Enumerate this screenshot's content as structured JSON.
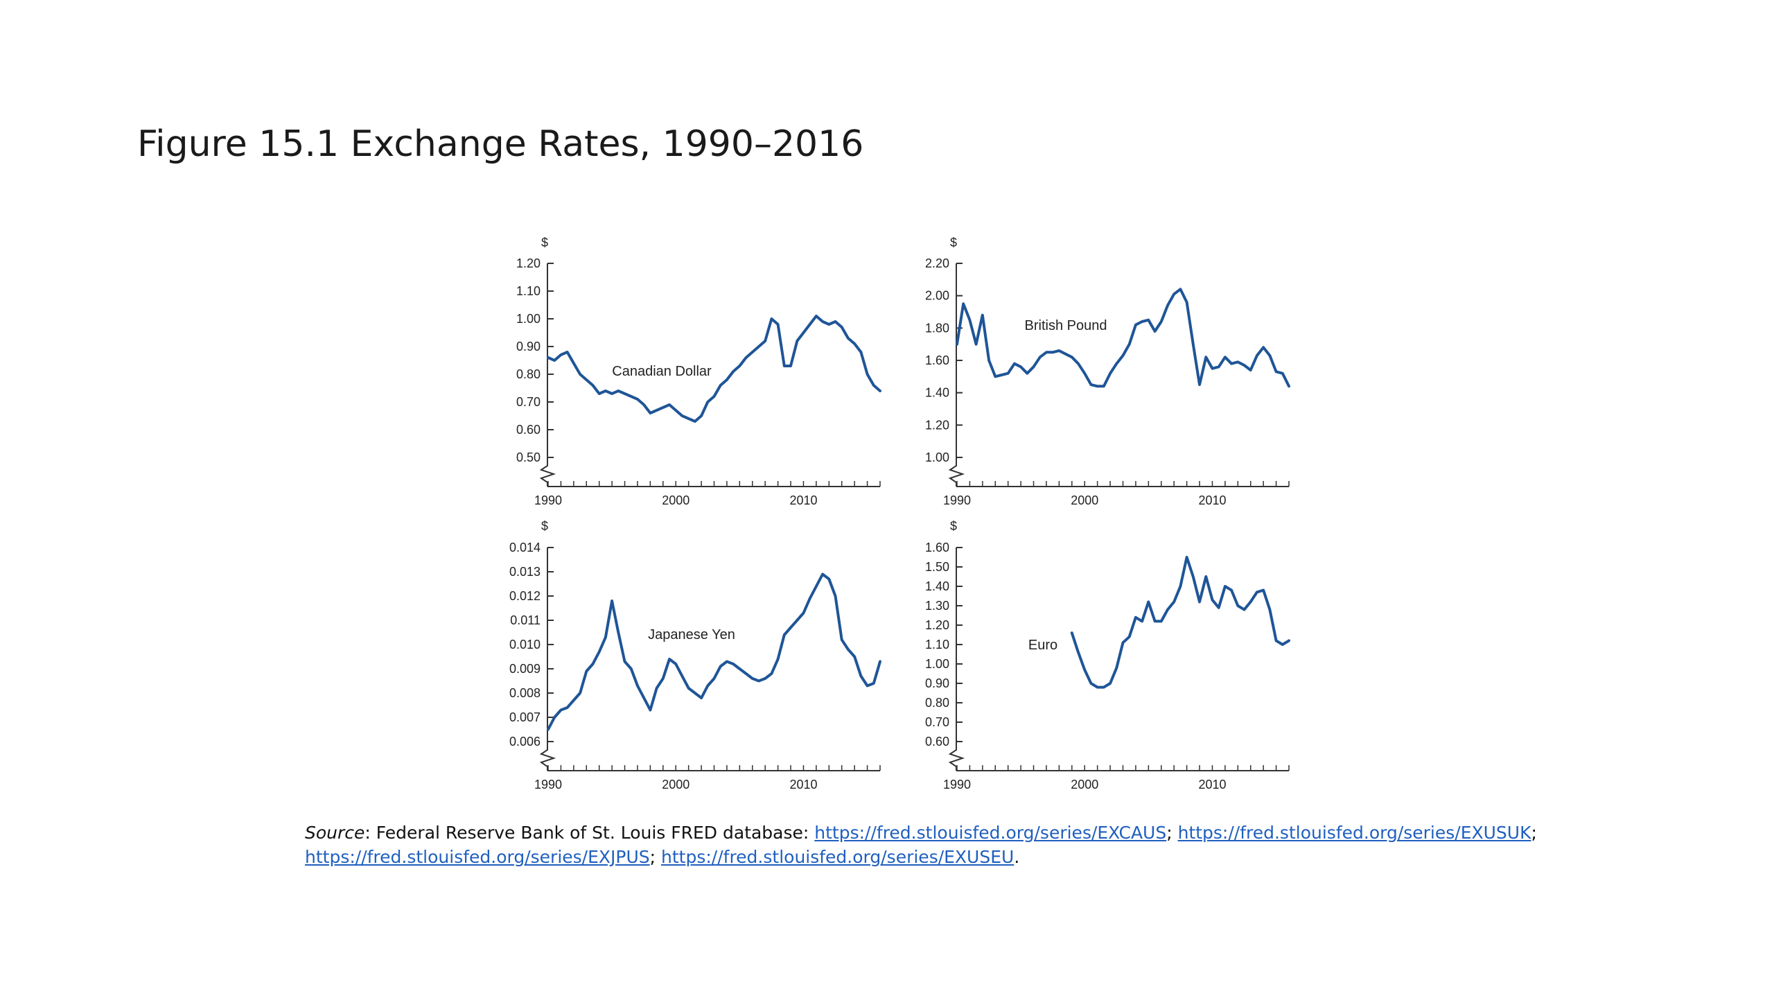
{
  "title": "Figure 15.1 Exchange Rates, 1990–2016",
  "source": {
    "label": "Source",
    "text": ": Federal Reserve Bank of St. Louis FRED database: ",
    "links": [
      "https://fred.stlouisfed.org/series/EXCAUS",
      "https://fred.stlouisfed.org/series/EXUSUK",
      "https://fred.stlouisfed.org/series/EXJPUS",
      "https://fred.stlouisfed.org/series/EXUSEU"
    ],
    "separator": "; ",
    "end": "."
  },
  "colors": {
    "line": "#1f5597",
    "axis": "#333333",
    "link": "#1f5fbf"
  },
  "chart_data": [
    {
      "type": "line",
      "series_label": "Canadian Dollar",
      "ylabel": "$",
      "yticks": [
        "0.50",
        "0.60",
        "0.70",
        "0.80",
        "0.90",
        "1.00",
        "1.10",
        "1.20"
      ],
      "ylim": [
        0.5,
        1.2
      ],
      "xticks": [
        "1990",
        "2000",
        "2010"
      ],
      "xlim": [
        1990,
        2016
      ],
      "x": [
        1990,
        1990.5,
        1991,
        1991.5,
        1992,
        1992.5,
        1993,
        1993.5,
        1994,
        1994.5,
        1995,
        1995.5,
        1996,
        1996.5,
        1997,
        1997.5,
        1998,
        1998.5,
        1999,
        1999.5,
        2000,
        2000.5,
        2001,
        2001.5,
        2002,
        2002.5,
        2003,
        2003.5,
        2004,
        2004.5,
        2005,
        2005.5,
        2006,
        2006.5,
        2007,
        2007.5,
        2008,
        2008.5,
        2009,
        2009.5,
        2010,
        2010.5,
        2011,
        2011.5,
        2012,
        2012.5,
        2013,
        2013.5,
        2014,
        2014.5,
        2015,
        2015.5,
        2016
      ],
      "values": [
        0.86,
        0.85,
        0.87,
        0.88,
        0.84,
        0.8,
        0.78,
        0.76,
        0.73,
        0.74,
        0.73,
        0.74,
        0.73,
        0.72,
        0.71,
        0.69,
        0.66,
        0.67,
        0.68,
        0.69,
        0.67,
        0.65,
        0.64,
        0.63,
        0.65,
        0.7,
        0.72,
        0.76,
        0.78,
        0.81,
        0.83,
        0.86,
        0.88,
        0.9,
        0.92,
        1.0,
        0.98,
        0.83,
        0.83,
        0.92,
        0.95,
        0.98,
        1.01,
        0.99,
        0.98,
        0.99,
        0.97,
        0.93,
        0.91,
        0.88,
        0.8,
        0.76,
        0.74
      ]
    },
    {
      "type": "line",
      "series_label": "British Pound",
      "ylabel": "$",
      "yticks": [
        "1.00",
        "1.20",
        "1.40",
        "1.60",
        "1.80",
        "2.00",
        "2.20"
      ],
      "ylim": [
        1.0,
        2.2
      ],
      "xticks": [
        "1990",
        "2000",
        "2010"
      ],
      "xlim": [
        1990,
        2016
      ],
      "x": [
        1990,
        1990.5,
        1991,
        1991.5,
        1992,
        1992.5,
        1993,
        1993.5,
        1994,
        1994.5,
        1995,
        1995.5,
        1996,
        1996.5,
        1997,
        1997.5,
        1998,
        1998.5,
        1999,
        1999.5,
        2000,
        2000.5,
        2001,
        2001.5,
        2002,
        2002.5,
        2003,
        2003.5,
        2004,
        2004.5,
        2005,
        2005.5,
        2006,
        2006.5,
        2007,
        2007.5,
        2008,
        2008.5,
        2009,
        2009.5,
        2010,
        2010.5,
        2011,
        2011.5,
        2012,
        2012.5,
        2013,
        2013.5,
        2014,
        2014.5,
        2015,
        2015.5,
        2016
      ],
      "values": [
        1.7,
        1.95,
        1.85,
        1.7,
        1.88,
        1.6,
        1.5,
        1.51,
        1.52,
        1.58,
        1.56,
        1.52,
        1.56,
        1.62,
        1.65,
        1.65,
        1.66,
        1.64,
        1.62,
        1.58,
        1.52,
        1.45,
        1.44,
        1.44,
        1.52,
        1.58,
        1.63,
        1.7,
        1.82,
        1.84,
        1.85,
        1.78,
        1.84,
        1.94,
        2.01,
        2.04,
        1.96,
        1.7,
        1.45,
        1.62,
        1.55,
        1.56,
        1.62,
        1.58,
        1.59,
        1.57,
        1.54,
        1.63,
        1.68,
        1.63,
        1.53,
        1.52,
        1.44
      ]
    },
    {
      "type": "line",
      "series_label": "Japanese Yen",
      "ylabel": "$",
      "yticks": [
        "0.006",
        "0.007",
        "0.008",
        "0.009",
        "0.010",
        "0.011",
        "0.012",
        "0.013",
        "0.014"
      ],
      "ylim": [
        0.006,
        0.014
      ],
      "xticks": [
        "1990",
        "2000",
        "2010"
      ],
      "xlim": [
        1990,
        2016
      ],
      "x": [
        1990,
        1990.5,
        1991,
        1991.5,
        1992,
        1992.5,
        1993,
        1993.5,
        1994,
        1994.5,
        1995,
        1995.5,
        1996,
        1996.5,
        1997,
        1997.5,
        1998,
        1998.5,
        1999,
        1999.5,
        2000,
        2000.5,
        2001,
        2001.5,
        2002,
        2002.5,
        2003,
        2003.5,
        2004,
        2004.5,
        2005,
        2005.5,
        2006,
        2006.5,
        2007,
        2007.5,
        2008,
        2008.5,
        2009,
        2009.5,
        2010,
        2010.5,
        2011,
        2011.5,
        2012,
        2012.5,
        2013,
        2013.5,
        2014,
        2014.5,
        2015,
        2015.5,
        2016
      ],
      "values": [
        0.0065,
        0.007,
        0.0073,
        0.0074,
        0.0077,
        0.008,
        0.0089,
        0.0092,
        0.0097,
        0.0103,
        0.0118,
        0.0105,
        0.0093,
        0.009,
        0.0083,
        0.0078,
        0.0073,
        0.0082,
        0.0086,
        0.0094,
        0.0092,
        0.0087,
        0.0082,
        0.008,
        0.0078,
        0.0083,
        0.0086,
        0.0091,
        0.0093,
        0.0092,
        0.009,
        0.0088,
        0.0086,
        0.0085,
        0.0086,
        0.0088,
        0.0094,
        0.0104,
        0.0107,
        0.011,
        0.0113,
        0.0119,
        0.0124,
        0.0129,
        0.0127,
        0.012,
        0.0102,
        0.0098,
        0.0095,
        0.0087,
        0.0083,
        0.0084,
        0.0093
      ]
    },
    {
      "type": "line",
      "series_label": "Euro",
      "ylabel": "$",
      "yticks": [
        "0.60",
        "0.70",
        "0.80",
        "0.90",
        "1.00",
        "1.10",
        "1.20",
        "1.30",
        "1.40",
        "1.50",
        "1.60"
      ],
      "ylim": [
        0.6,
        1.6
      ],
      "xticks": [
        "1990",
        "2000",
        "2010"
      ],
      "xlim": [
        1990,
        2016
      ],
      "x": [
        1999,
        1999.5,
        2000,
        2000.5,
        2001,
        2001.5,
        2002,
        2002.5,
        2003,
        2003.5,
        2004,
        2004.5,
        2005,
        2005.5,
        2006,
        2006.5,
        2007,
        2007.5,
        2008,
        2008.5,
        2009,
        2009.5,
        2010,
        2010.5,
        2011,
        2011.5,
        2012,
        2012.5,
        2013,
        2013.5,
        2014,
        2014.5,
        2015,
        2015.5,
        2016
      ],
      "values": [
        1.16,
        1.06,
        0.97,
        0.9,
        0.88,
        0.88,
        0.9,
        0.98,
        1.11,
        1.14,
        1.24,
        1.22,
        1.32,
        1.22,
        1.22,
        1.28,
        1.32,
        1.4,
        1.55,
        1.45,
        1.32,
        1.45,
        1.33,
        1.29,
        1.4,
        1.38,
        1.3,
        1.28,
        1.32,
        1.37,
        1.38,
        1.28,
        1.12,
        1.1,
        1.12
      ]
    }
  ]
}
